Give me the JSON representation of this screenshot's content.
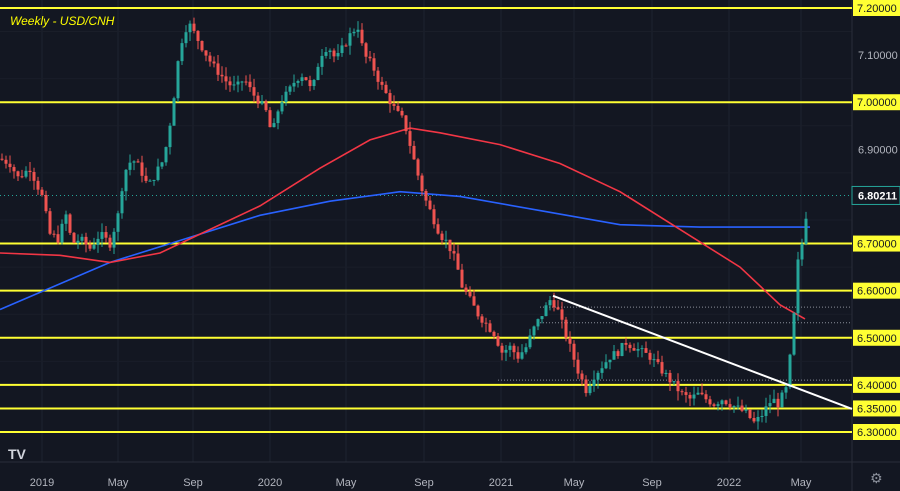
{
  "chart_data": {
    "type": "candlestick",
    "title": "Weekly - USD/CNH",
    "last_price": "6.80211",
    "y_ticks": [
      "7.20000",
      "7.10000",
      "7.00000",
      "6.90000",
      "6.80211",
      "6.70000",
      "6.60000",
      "6.50000",
      "6.40000",
      "6.35000",
      "6.30000"
    ],
    "x_ticks": [
      "2019",
      "May",
      "Sep",
      "2020",
      "May",
      "Sep",
      "2021",
      "May",
      "Sep",
      "2022",
      "May"
    ],
    "horizontal_levels": [
      7.2,
      7.0,
      6.7,
      6.6,
      6.5,
      6.4,
      6.35,
      6.3
    ],
    "ylim": [
      6.26,
      7.22
    ],
    "series": [
      {
        "name": "",
        "color": "#2962ff",
        "points": [
          [
            0,
            6.56
          ],
          [
            110,
            6.66
          ],
          [
            170,
            6.7
          ],
          [
            260,
            6.76
          ],
          [
            330,
            6.79
          ],
          [
            400,
            6.81
          ],
          [
            460,
            6.8
          ],
          [
            540,
            6.77
          ],
          [
            620,
            6.74
          ],
          [
            700,
            6.735
          ],
          [
            760,
            6.735
          ],
          [
            810,
            6.735
          ]
        ]
      },
      {
        "name": "",
        "color": "#f23645",
        "points": [
          [
            0,
            6.68
          ],
          [
            60,
            6.675
          ],
          [
            110,
            6.66
          ],
          [
            160,
            6.68
          ],
          [
            200,
            6.72
          ],
          [
            260,
            6.78
          ],
          [
            320,
            6.86
          ],
          [
            370,
            6.92
          ],
          [
            410,
            6.945
          ],
          [
            440,
            6.935
          ],
          [
            500,
            6.91
          ],
          [
            560,
            6.87
          ],
          [
            620,
            6.81
          ],
          [
            680,
            6.73
          ],
          [
            740,
            6.65
          ],
          [
            780,
            6.57
          ],
          [
            805,
            6.54
          ]
        ]
      }
    ],
    "trendline": {
      "from": [
        553,
        6.589
      ],
      "to": [
        852,
        6.349
      ],
      "color": "#ffffff"
    },
    "candles_approx": "Weekly closes approx: 2019 start ~6.85, dip to ~6.70 mid-2019, rally to ~7.18 in Sep 2019, ~7.10 into 2020, peak ~7.20 May 2020, decline through Sep 2020 to ~6.45 early 2021, range 6.40-6.55 mid 2021, drift to ~6.32 early 2022, surge to ~6.80 by May 2022"
  },
  "labels": {
    "title": "Weekly - USD/CNH",
    "logo": "TV",
    "gear": "⚙"
  }
}
